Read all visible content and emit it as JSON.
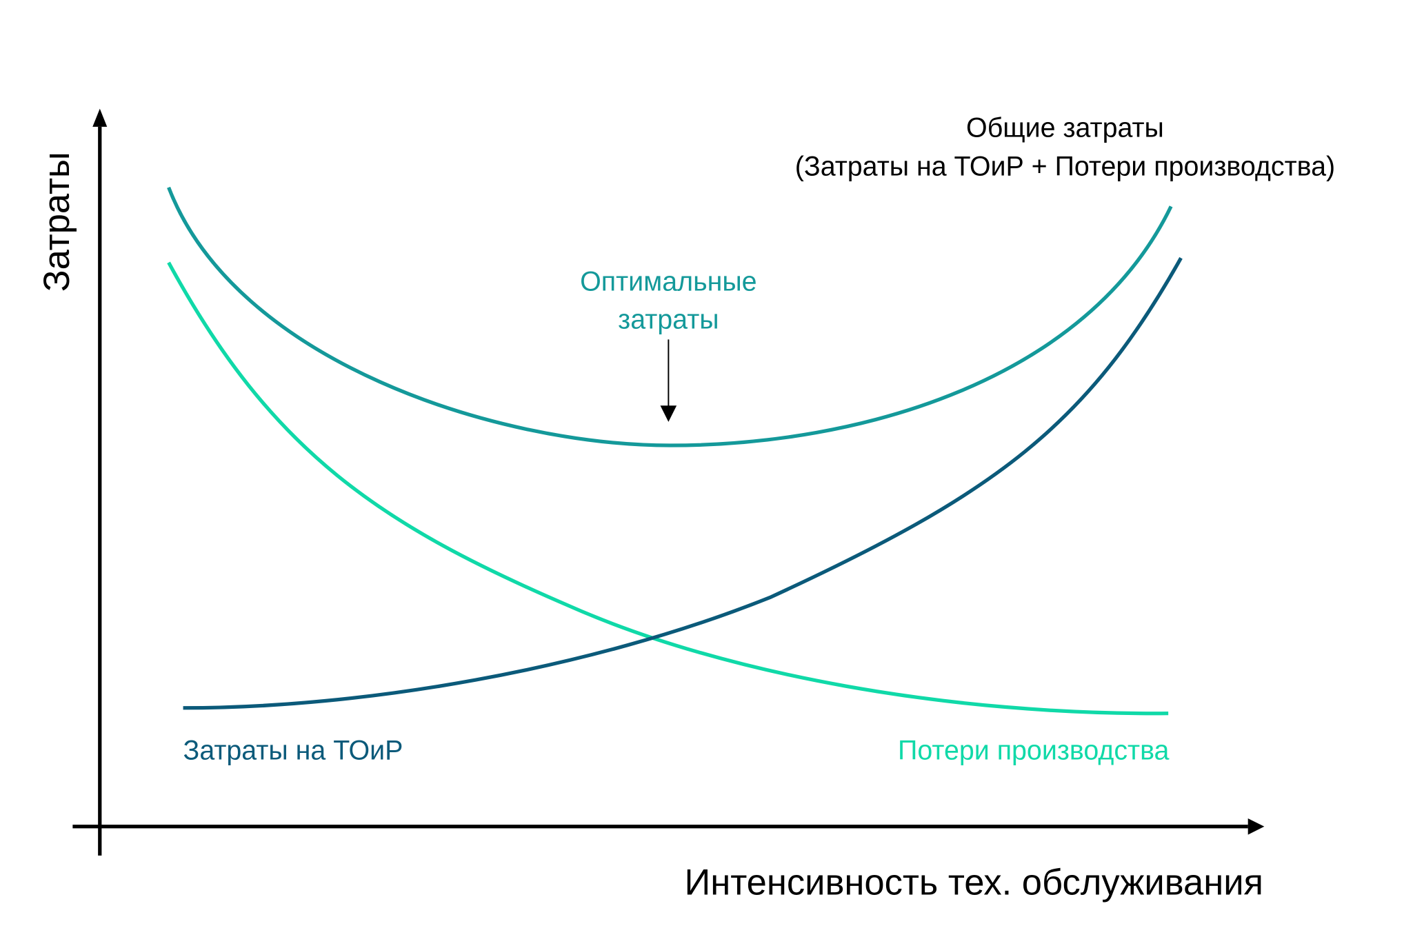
{
  "diagram": {
    "y_axis_label": "Затраты",
    "x_axis_label": "Интенсивность тех. обслуживания",
    "total_cost_label_line1": "Общие затраты",
    "total_cost_label_line2": "(Затраты на ТОиР + Потери производства)",
    "optimal_label_line1": "Оптимальные",
    "optimal_label_line2": "затраты",
    "maintenance_cost_label": "Затраты на ТОиР",
    "production_loss_label": "Потери производства"
  },
  "colors": {
    "total_cost": "#14999a",
    "production_loss": "#10d9a8",
    "maintenance_cost": "#0b5a7a",
    "axes": "#000000"
  }
}
